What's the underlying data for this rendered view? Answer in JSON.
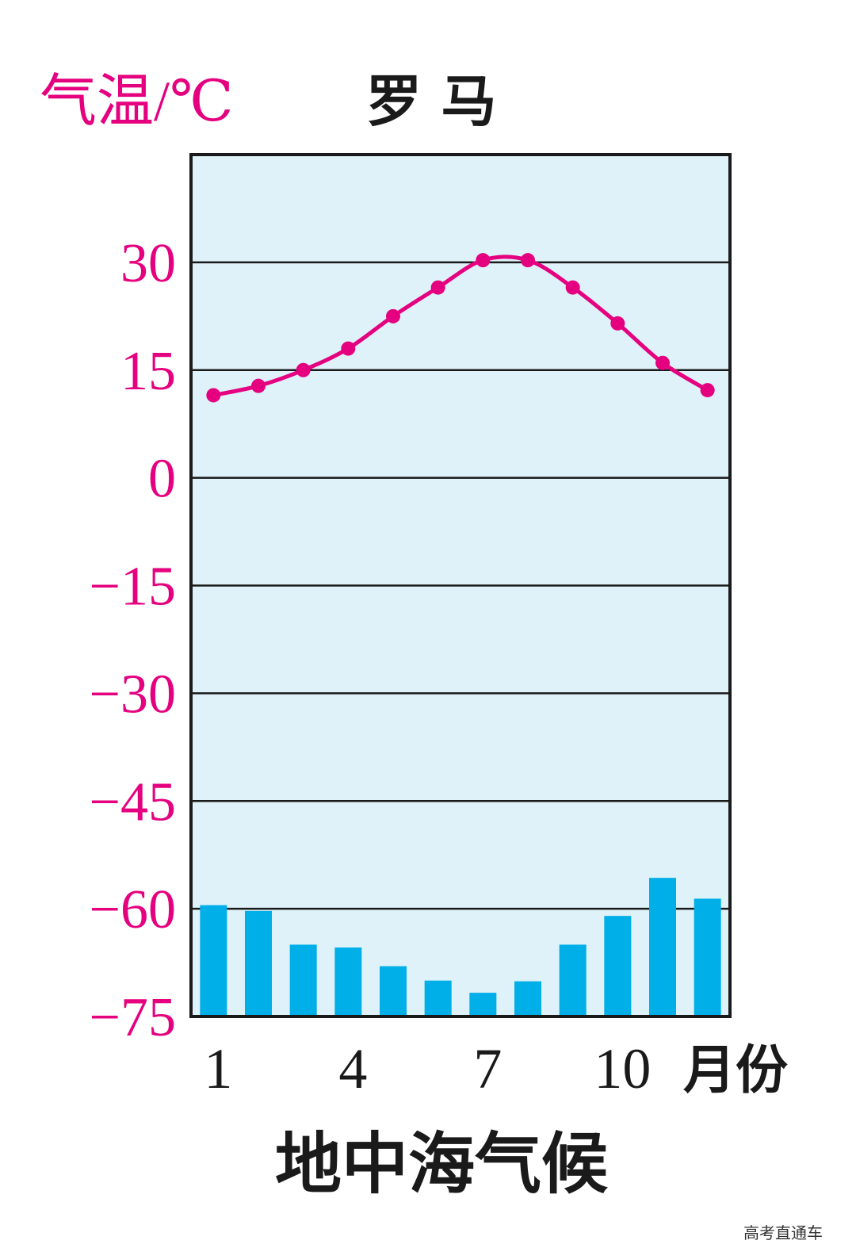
{
  "colors": {
    "temperature": "#e5007f",
    "precipitation": "#00aee8",
    "plot_background": "#dff2fa",
    "grid": "#1a1a1a",
    "text": "#1a1a1a"
  },
  "chart_data": {
    "type": "bar+line",
    "title": "罗 马",
    "caption": "地中海气候",
    "watermark": "高考直通车",
    "ylabel": "气温/℃",
    "xunit": "月份",
    "x": [
      1,
      2,
      3,
      4,
      5,
      6,
      7,
      8,
      9,
      10,
      11,
      12
    ],
    "x_tick_labels": [
      "1",
      "4",
      "7",
      "10"
    ],
    "x_tick_months": [
      1,
      4,
      7,
      10
    ],
    "ylim": [
      -75,
      45
    ],
    "y_ticks": [
      30,
      15,
      0,
      -15,
      -30,
      -45,
      -60,
      -75
    ],
    "y_tick_labels": [
      "30",
      "15",
      "0",
      "−15",
      "−30",
      "−45",
      "−60",
      "−75"
    ],
    "grid": "horizontal",
    "series": [
      {
        "kind": "line",
        "axis": "temperature",
        "values": [
          11.5,
          12.8,
          15.0,
          18.0,
          22.5,
          26.5,
          30.3,
          30.3,
          26.5,
          21.5,
          16.0,
          12.2
        ]
      },
      {
        "kind": "bar",
        "axis": "temperature_scale",
        "values": [
          -59.5,
          -60.3,
          -65.0,
          -65.4,
          -68.0,
          -70.0,
          -71.7,
          -70.1,
          -65.0,
          -61.0,
          -55.7,
          -58.6
        ]
      }
    ]
  }
}
